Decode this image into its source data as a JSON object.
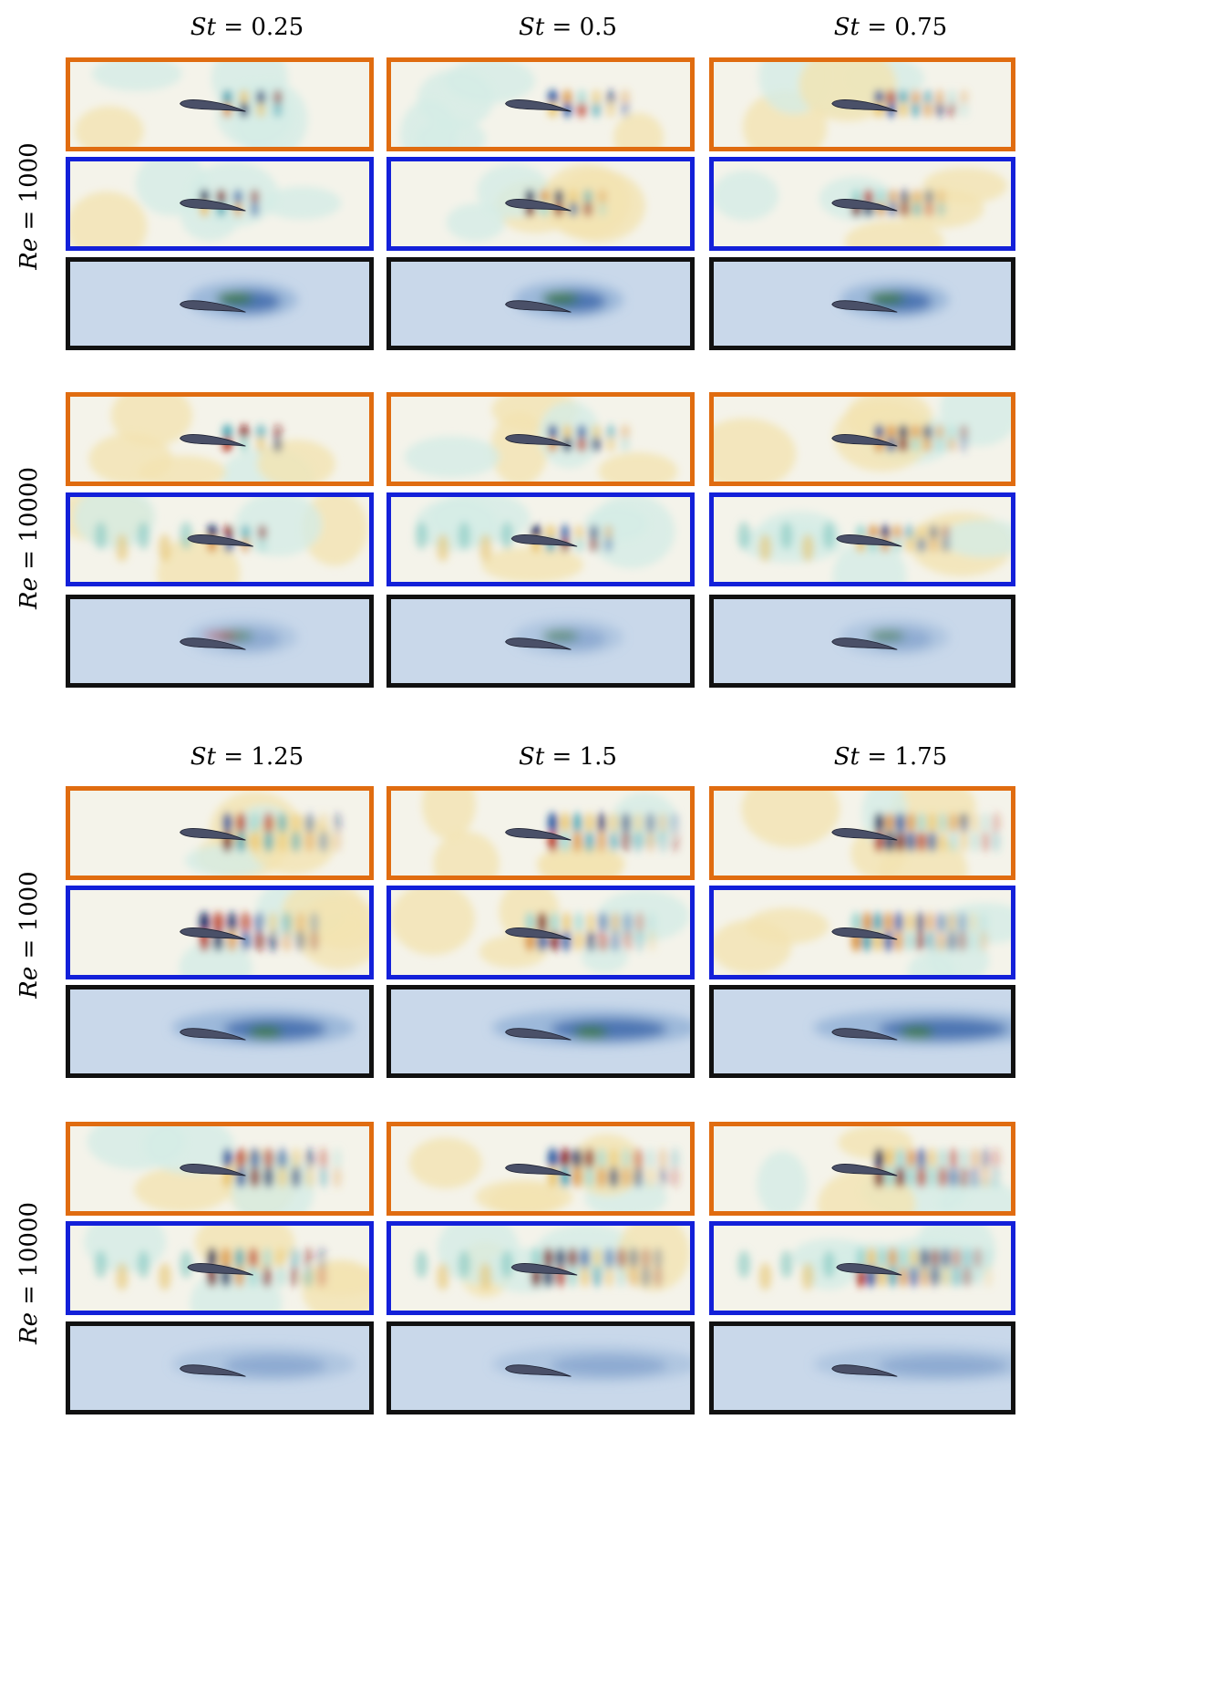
{
  "figure": {
    "column_headers_top": [
      "St = 0.25",
      "St = 0.5",
      "St = 0.75"
    ],
    "column_headers_bottom": [
      "St = 1.25",
      "St = 1.5",
      "St = 1.75"
    ],
    "row_labels": [
      "Re = 1000",
      "Re = 10000",
      "Re = 1000",
      "Re = 10000"
    ],
    "panel_types": [
      "orange-framed field",
      "blue-framed field",
      "black-framed magnitude field"
    ],
    "colors": {
      "orange_frame": "#e06c10",
      "blue_frame": "#1320d9",
      "black_frame": "#111111",
      "airfoil": "#4a5068",
      "field_background": "#f4f3ea",
      "magnitude_background": "#c9d8ea"
    }
  }
}
